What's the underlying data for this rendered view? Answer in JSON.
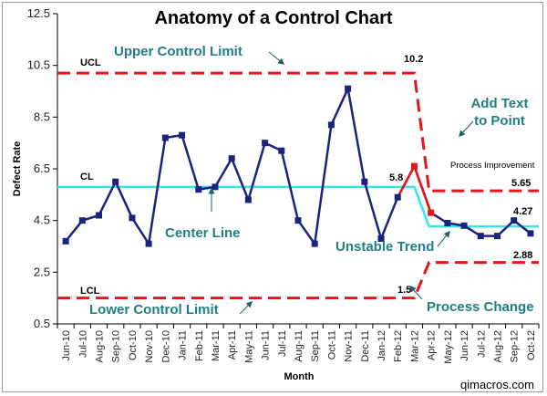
{
  "chart_data": {
    "type": "line",
    "title": "Anatomy of a Control Chart",
    "xlabel": "Month",
    "ylabel": "Defect Rate",
    "ylim": [
      0.5,
      12.5
    ],
    "yticks": [
      "0.5",
      "2.5",
      "4.5",
      "6.5",
      "8.5",
      "10.5",
      "12.5"
    ],
    "categories": [
      "Jun-10",
      "Jul-10",
      "Aug-10",
      "Sep-10",
      "Oct-10",
      "Nov-10",
      "Dec-10",
      "Jan-11",
      "Feb-11",
      "Mar-11",
      "Apr-11",
      "May-11",
      "Jun-11",
      "Jul-11",
      "Aug-11",
      "Sep-11",
      "Oct-11",
      "Nov-11",
      "Dec-11",
      "Jan-12",
      "Feb-12",
      "Mar-12",
      "Apr-12",
      "May-12",
      "Jun-12",
      "Jul-12",
      "Aug-12",
      "Sep-12",
      "Oct-12"
    ],
    "series": [
      {
        "name": "",
        "values": [
          3.7,
          4.5,
          4.7,
          6.0,
          4.6,
          3.6,
          7.7,
          7.8,
          5.7,
          5.8,
          6.9,
          5.3,
          7.5,
          7.2,
          4.5,
          3.6,
          8.2,
          9.6,
          6.0,
          3.8,
          5.4,
          6.6,
          4.8,
          4.4,
          4.3,
          3.9,
          3.9,
          4.5,
          4.0
        ],
        "color": "#1a237e"
      }
    ],
    "limits": {
      "before_change": {
        "UCL": 10.2,
        "CL": 5.8,
        "LCL": 1.5
      },
      "after_change": {
        "UCL": 5.65,
        "CL": 4.27,
        "LCL": 2.88
      },
      "change_after_index": 21,
      "ucl_color": "#e8141c",
      "cl_color": "#33e6f0"
    },
    "limit_labels": {
      "ucl": "UCL",
      "cl": "CL",
      "lcl": "LCL"
    },
    "value_labels": {
      "ucl_before": "10.2",
      "cl_before": "5.8",
      "lcl_before": "1.5",
      "ucl_after": "5.65",
      "cl_after": "4.27",
      "lcl_after": "2.88"
    },
    "annotations": {
      "upper_control_limit": "Upper Control Limit",
      "center_line": "Center Line",
      "lower_control_limit": "Lower Control Limit",
      "unstable_trend": "Unstable Trend",
      "process_change": "Process Change",
      "add_text_1": "Add Text",
      "add_text_2": "to Point",
      "process_improvement": "Process Improvement"
    },
    "annotation_color": "#1f7f86",
    "trend_segment_color": "#e8141c",
    "grid": false
  },
  "footer": "qimacros.com"
}
